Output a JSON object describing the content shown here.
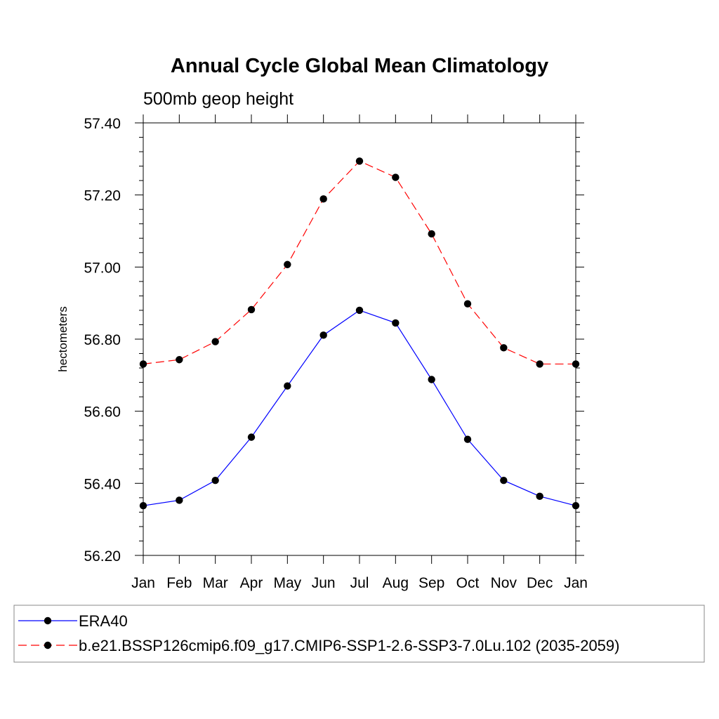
{
  "chart_data": {
    "type": "line",
    "title": "Annual Cycle Global Mean Climatology",
    "subtitle": "500mb geop height",
    "xlabel": "",
    "ylabel": "hectometers",
    "categories": [
      "Jan",
      "Feb",
      "Mar",
      "Apr",
      "May",
      "Jun",
      "Jul",
      "Aug",
      "Sep",
      "Oct",
      "Nov",
      "Dec",
      "Jan"
    ],
    "ylim": [
      56.2,
      57.4
    ],
    "yticks": [
      56.2,
      56.4,
      56.6,
      56.8,
      57.0,
      57.2,
      57.4
    ],
    "ytick_labels": [
      "56.20",
      "56.40",
      "56.60",
      "56.80",
      "57.00",
      "57.20",
      "57.40"
    ],
    "grid": false,
    "legend_position": "bottom",
    "series": [
      {
        "name": "ERA40",
        "color": "#0000ff",
        "dash": "solid",
        "values": [
          56.338,
          56.353,
          56.408,
          56.528,
          56.67,
          56.811,
          56.88,
          56.845,
          56.688,
          56.522,
          56.408,
          56.364,
          56.338
        ]
      },
      {
        "name": "b.e21.BSSP126cmip6.f09_g17.CMIP6-SSP1-2.6-SSP3-7.0Lu.102 (2035-2059)",
        "color": "#ff0000",
        "dash": "dashed",
        "values": [
          56.731,
          56.743,
          56.793,
          56.882,
          57.007,
          57.189,
          57.294,
          57.249,
          57.092,
          56.898,
          56.776,
          56.731,
          56.731
        ]
      }
    ]
  }
}
